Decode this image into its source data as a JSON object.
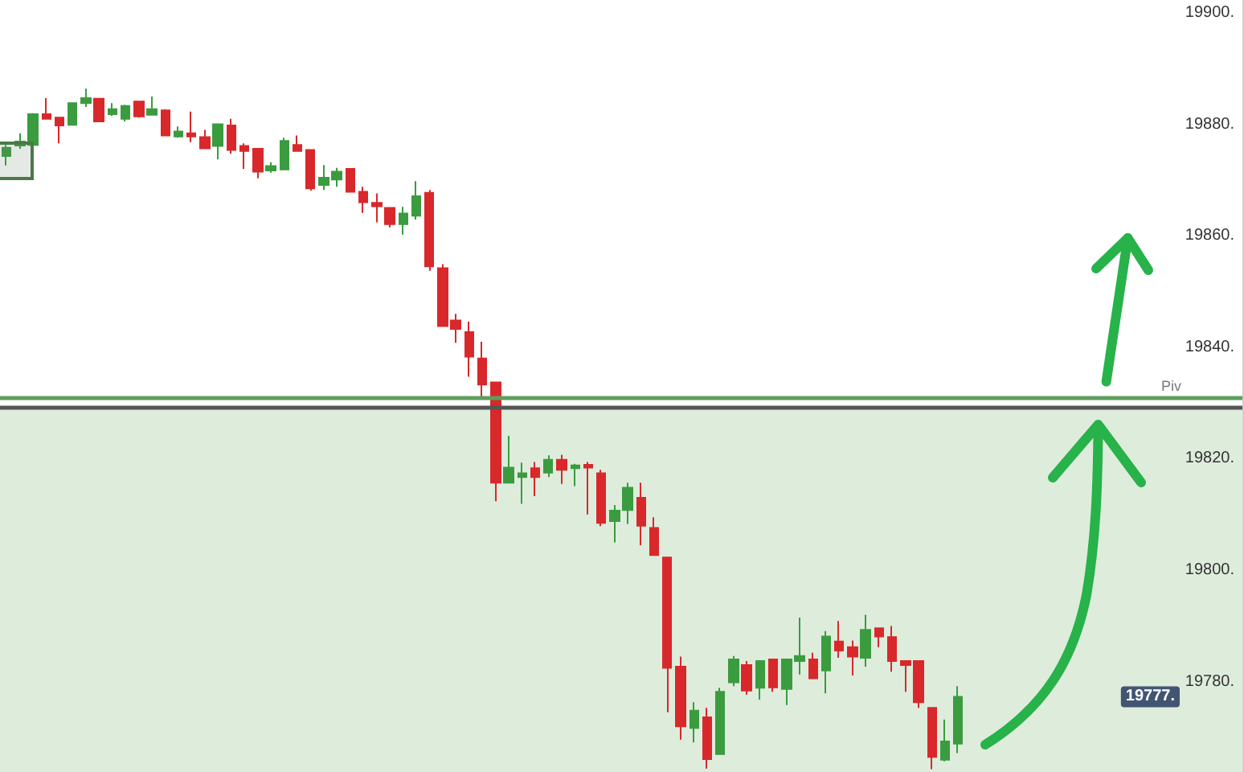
{
  "chart_data": {
    "type": "candlestick",
    "categories": [
      null,
      null,
      null,
      null,
      null,
      null,
      null,
      null,
      null,
      null,
      null,
      null,
      null,
      null,
      null,
      null,
      null,
      null,
      null,
      null,
      null,
      null,
      null,
      null,
      null,
      null,
      null,
      null,
      null,
      null,
      null,
      null,
      null,
      null,
      null,
      null,
      null,
      null,
      null,
      null,
      null,
      null,
      null,
      null,
      null,
      null,
      null,
      null,
      null,
      null,
      null,
      null,
      null,
      null,
      null,
      null,
      null,
      null,
      null,
      null,
      null,
      null,
      null,
      null,
      null,
      null,
      null,
      null,
      null,
      null,
      null,
      null,
      null,
      null,
      null,
      null,
      null,
      null,
      null,
      null,
      null,
      null,
      null,
      null,
      null,
      null,
      null,
      null,
      null,
      null,
      null,
      null,
      null,
      null
    ],
    "ohlc": [
      [
        19874.3,
        19876.3,
        19872.6,
        19875.8
      ],
      [
        19876.2,
        19878.4,
        19875.6,
        19876.9
      ],
      [
        19876.3,
        19882.0,
        19876.1,
        19881.8
      ],
      [
        19881.8,
        19884.7,
        19880.9,
        19881.0
      ],
      [
        19881.2,
        19881.3,
        19876.6,
        19879.8
      ],
      [
        19879.9,
        19883.9,
        19879.8,
        19883.8
      ],
      [
        19883.8,
        19886.4,
        19883.1,
        19884.7
      ],
      [
        19884.6,
        19884.7,
        19880.4,
        19880.5
      ],
      [
        19881.8,
        19883.8,
        19881.5,
        19882.7
      ],
      [
        19881.0,
        19883.5,
        19880.5,
        19883.3
      ],
      [
        19884.1,
        19884.2,
        19881.2,
        19881.4
      ],
      [
        19881.7,
        19885.0,
        19881.6,
        19882.7
      ],
      [
        19882.5,
        19882.7,
        19877.9,
        19878.0
      ],
      [
        19877.8,
        19879.6,
        19877.6,
        19878.7
      ],
      [
        19878.4,
        19882.3,
        19876.8,
        19877.8
      ],
      [
        19877.7,
        19879.0,
        19875.6,
        19875.7
      ],
      [
        19876.1,
        19880.1,
        19873.7,
        19880.0
      ],
      [
        19879.8,
        19881.0,
        19874.7,
        19875.4
      ],
      [
        19876.1,
        19876.6,
        19872.0,
        19875.2
      ],
      [
        19875.6,
        19875.7,
        19870.3,
        19871.5
      ],
      [
        19871.7,
        19873.2,
        19871.3,
        19872.5
      ],
      [
        19871.9,
        19877.6,
        19871.8,
        19877.0
      ],
      [
        19876.3,
        19878.0,
        19875.1,
        19875.2
      ],
      [
        19875.4,
        19875.5,
        19868.1,
        19868.5
      ],
      [
        19869.1,
        19872.7,
        19868.2,
        19870.4
      ],
      [
        19870.1,
        19872.2,
        19868.8,
        19871.5
      ],
      [
        19872.0,
        19872.1,
        19867.8,
        19867.9
      ],
      [
        19867.9,
        19868.8,
        19864.1,
        19866.0
      ],
      [
        19865.9,
        19867.6,
        19862.4,
        19865.3
      ],
      [
        19865.0,
        19865.1,
        19861.5,
        19862.1
      ],
      [
        19862.1,
        19865.2,
        19860.2,
        19864.0
      ],
      [
        19863.6,
        19869.8,
        19862.9,
        19867.1
      ],
      [
        19867.7,
        19868.2,
        19853.7,
        19854.5
      ],
      [
        19854.2,
        19854.9,
        19843.7,
        19843.8
      ],
      [
        19844.8,
        19846.0,
        19840.8,
        19843.3
      ],
      [
        19842.7,
        19844.6,
        19834.7,
        19838.3
      ],
      [
        19838.0,
        19841.0,
        19830.8,
        19833.3
      ],
      [
        19833.7,
        19833.8,
        19812.4,
        19815.7
      ],
      [
        19815.7,
        19824.1,
        19815.6,
        19818.4
      ],
      [
        19816.7,
        19819.3,
        19811.9,
        19817.4
      ],
      [
        19818.3,
        19819.4,
        19813.3,
        19816.7
      ],
      [
        19817.5,
        19820.6,
        19816.7,
        19819.8
      ],
      [
        19819.8,
        19820.7,
        19815.5,
        19818.0
      ],
      [
        19818.3,
        19819.1,
        19815.1,
        19818.8
      ],
      [
        19818.9,
        19819.4,
        19810.0,
        19818.4
      ],
      [
        19817.4,
        19818.0,
        19807.9,
        19808.5
      ],
      [
        19808.8,
        19811.7,
        19805.0,
        19810.7
      ],
      [
        19810.8,
        19815.7,
        19808.3,
        19814.8
      ],
      [
        19813.0,
        19815.7,
        19804.5,
        19808.0
      ],
      [
        19807.6,
        19809.5,
        19802.6,
        19802.7
      ],
      [
        19802.3,
        19802.4,
        19774.5,
        19782.5
      ],
      [
        19782.7,
        19784.5,
        19769.6,
        19772.0
      ],
      [
        19771.7,
        19776.3,
        19769.1,
        19774.8
      ],
      [
        19773.6,
        19775.3,
        19764.4,
        19766.1
      ],
      [
        19767.0,
        19778.9,
        19766.9,
        19778.2
      ],
      [
        19779.9,
        19784.6,
        19779.2,
        19784.0
      ],
      [
        19783.0,
        19783.7,
        19777.7,
        19778.4
      ],
      [
        19778.9,
        19783.8,
        19776.8,
        19783.7
      ],
      [
        19784.0,
        19784.1,
        19778.2,
        19779.0
      ],
      [
        19778.7,
        19784.1,
        19775.8,
        19784.0
      ],
      [
        19783.7,
        19791.5,
        19781.3,
        19784.6
      ],
      [
        19784.0,
        19785.2,
        19780.5,
        19780.6
      ],
      [
        19782.0,
        19789.1,
        19777.9,
        19788.1
      ],
      [
        19787.2,
        19790.9,
        19784.3,
        19785.6
      ],
      [
        19786.2,
        19787.4,
        19781.1,
        19784.5
      ],
      [
        19784.3,
        19792.0,
        19782.7,
        19789.3
      ],
      [
        19789.6,
        19789.7,
        19786.2,
        19788.1
      ],
      [
        19788.0,
        19790.0,
        19781.8,
        19783.7
      ],
      [
        19783.7,
        19783.8,
        19778.2,
        19783.0
      ],
      [
        19783.7,
        19783.8,
        19775.3,
        19776.3
      ],
      [
        19775.3,
        19775.4,
        19764.3,
        19766.5
      ],
      [
        19766.0,
        19773.2,
        19765.7,
        19769.3
      ],
      [
        19768.9,
        19779.2,
        19767.2,
        19777.3
      ],
      null,
      null,
      null,
      null,
      null,
      null,
      null,
      null,
      null,
      null,
      null,
      null,
      null,
      null,
      null,
      null,
      null,
      null,
      null,
      null,
      null
    ],
    "colors": [
      "#3a9c3f",
      "#3a9c3f",
      "#3a9c3f",
      "#d8282b",
      "#d8282b",
      "#3a9c3f",
      "#3a9c3f",
      "#d8282b",
      "#3a9c3f",
      "#3a9c3f",
      "#d8282b",
      "#3a9c3f",
      "#d8282b",
      "#3a9c3f",
      "#d8282b",
      "#d8282b",
      "#3a9c3f",
      "#d8282b",
      "#d8282b",
      "#d8282b",
      "#3a9c3f",
      "#3a9c3f",
      "#d8282b",
      "#d8282b",
      "#3a9c3f",
      "#3a9c3f",
      "#d8282b",
      "#d8282b",
      "#d8282b",
      "#d8282b",
      "#3a9c3f",
      "#3a9c3f",
      "#d8282b",
      "#d8282b",
      "#d8282b",
      "#d8282b",
      "#d8282b",
      "#d8282b",
      "#3a9c3f",
      "#3a9c3f",
      "#d8282b",
      "#3a9c3f",
      "#d8282b",
      "#3a9c3f",
      "#d8282b",
      "#d8282b",
      "#3a9c3f",
      "#3a9c3f",
      "#d8282b",
      "#d8282b",
      "#d8282b",
      "#d8282b",
      "#3a9c3f",
      "#d8282b",
      "#3a9c3f",
      "#3a9c3f",
      "#d8282b",
      "#3a9c3f",
      "#d8282b",
      "#3a9c3f",
      "#3a9c3f",
      "#d8282b",
      "#3a9c3f",
      "#d8282b",
      "#d8282b",
      "#3a9c3f",
      "#d8282b",
      "#d8282b",
      "#d8282b",
      "#d8282b",
      "#d8282b",
      "#3a9c3f",
      "#3a9c3f",
      null,
      null,
      null,
      null,
      null,
      null,
      null,
      null,
      null,
      null,
      null,
      null,
      null,
      null,
      null,
      null,
      null,
      null,
      null,
      null,
      null
    ],
    "ylim": [
      19763.8,
      19902.3
    ],
    "yticks": [
      {
        "value": 19780,
        "label": "19780."
      },
      {
        "value": 19800,
        "label": "19800."
      },
      {
        "value": 19820,
        "label": "19820."
      },
      {
        "value": 19840,
        "label": "19840."
      },
      {
        "value": 19860,
        "label": "19860."
      },
      {
        "value": 19880,
        "label": "19880."
      },
      {
        "value": 19900,
        "label": "19900."
      }
    ],
    "ref_lines": [
      {
        "axis": "y",
        "value": 19830.9,
        "color": "#5e9e5e"
      },
      {
        "axis": "y",
        "value": 19829.1,
        "label": "Piv",
        "color": "#555555"
      }
    ],
    "bands": [
      {
        "axis": "y",
        "from": 19763.8,
        "to": 19829.1,
        "color": "#deecdc"
      }
    ],
    "annotations": [
      {
        "text": "19777.",
        "y": 19777.3
      }
    ],
    "grid": false,
    "tick_labels": "y"
  }
}
